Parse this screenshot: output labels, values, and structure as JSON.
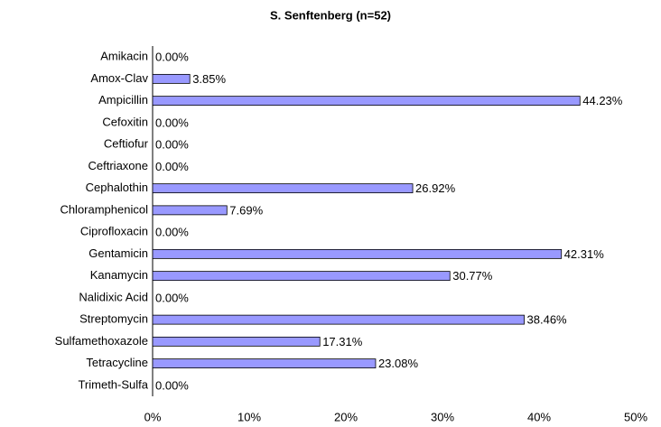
{
  "chart_data": {
    "type": "hbar",
    "title": "S. Senftenberg (n=52)",
    "categories": [
      "Amikacin",
      "Amox-Clav",
      "Ampicillin",
      "Cefoxitin",
      "Ceftiofur",
      "Ceftriaxone",
      "Cephalothin",
      "Chloramphenicol",
      "Ciprofloxacin",
      "Gentamicin",
      "Kanamycin",
      "Nalidixic Acid",
      "Streptomycin",
      "Sulfamethoxazole",
      "Tetracycline",
      "Trimeth-Sulfa"
    ],
    "values": [
      0,
      3.85,
      44.23,
      0,
      0,
      0,
      26.92,
      7.69,
      0,
      42.31,
      30.77,
      0,
      38.46,
      17.31,
      23.08,
      0
    ],
    "value_labels": [
      "0.00%",
      "3.85%",
      "44.23%",
      "0.00%",
      "0.00%",
      "0.00%",
      "26.92%",
      "7.69%",
      "0.00%",
      "42.31%",
      "30.77%",
      "0.00%",
      "38.46%",
      "17.31%",
      "23.08%",
      "0.00%"
    ],
    "color": "#9999ff",
    "xlim": [
      0,
      50
    ],
    "xticks": [
      {
        "value": 0,
        "label": "0%"
      },
      {
        "value": 10,
        "label": "10%"
      },
      {
        "value": 20,
        "label": "20%"
      },
      {
        "value": 30,
        "label": "30%"
      },
      {
        "value": 40,
        "label": "40%"
      },
      {
        "value": 50,
        "label": "50%"
      }
    ],
    "grid": false
  }
}
